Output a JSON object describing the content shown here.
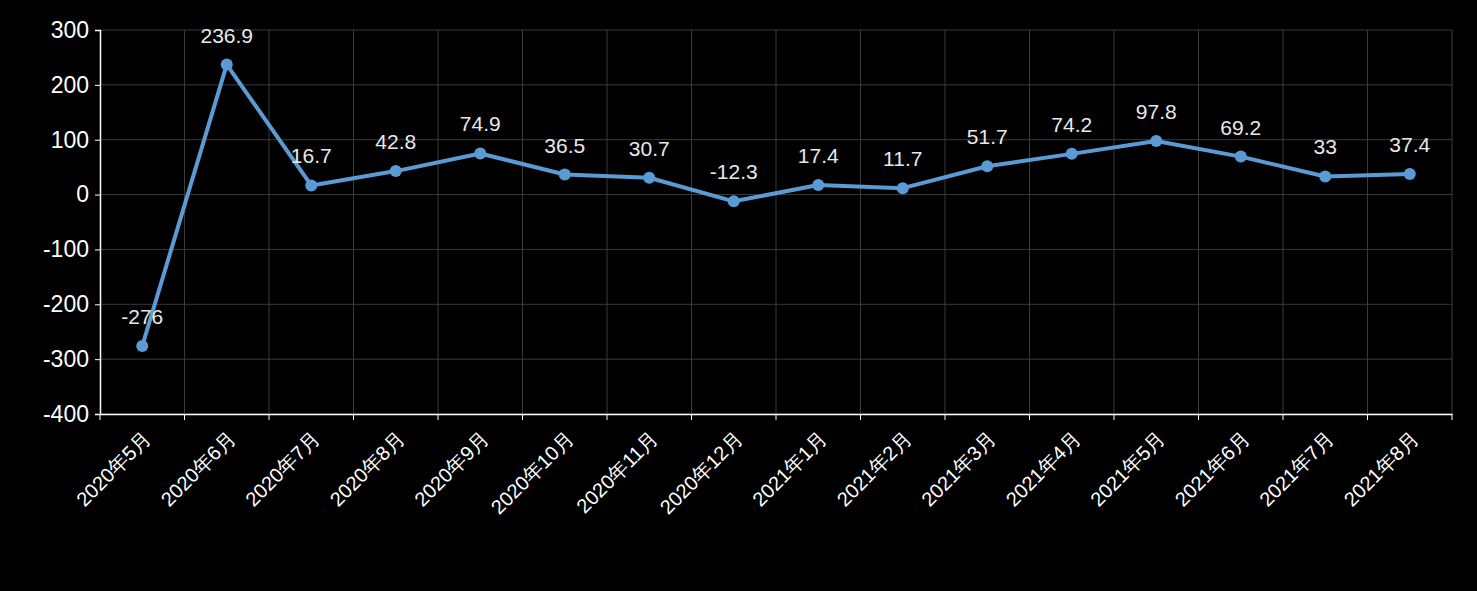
{
  "chart_data": {
    "type": "line",
    "categories": [
      "2020年5月",
      "2020年6月",
      "2020年7月",
      "2020年8月",
      "2020年9月",
      "2020年10月",
      "2020年11月",
      "2020年12月",
      "2021年1月",
      "2021年2月",
      "2021年3月",
      "2021年4月",
      "2021年5月",
      "2021年6月",
      "2021年7月",
      "2021年8月"
    ],
    "values": [
      -276,
      236.9,
      16.7,
      42.8,
      74.9,
      36.5,
      30.7,
      -12.3,
      17.4,
      11.7,
      51.7,
      74.2,
      97.8,
      69.2,
      33,
      37.4
    ],
    "color": "#5b9bd5",
    "ylim": [
      -400,
      300
    ],
    "yticks": [
      -400,
      -300,
      -200,
      -100,
      0,
      100,
      200,
      300
    ],
    "grid": true,
    "data_labels": true,
    "marker": "circle"
  }
}
